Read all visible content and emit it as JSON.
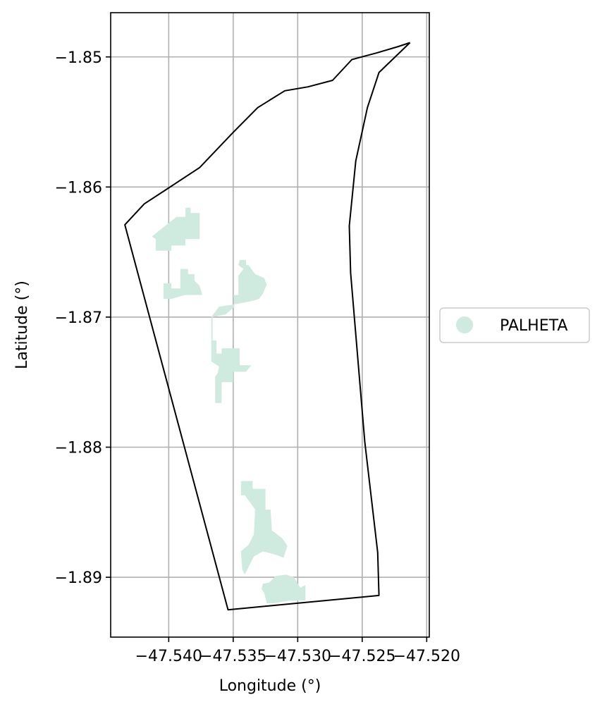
{
  "chart_data": {
    "type": "map",
    "title": "",
    "xlabel": "Longitude (°)",
    "ylabel": "Latitude (°)",
    "xlim": [
      -47.5445,
      -47.5198
    ],
    "ylim": [
      -1.8946,
      -1.8466
    ],
    "grid": true,
    "x_ticks": [
      {
        "value": -47.54,
        "label": "−47.540"
      },
      {
        "value": -47.535,
        "label": "−47.535"
      },
      {
        "value": -47.53,
        "label": "−47.530"
      },
      {
        "value": -47.525,
        "label": "−47.525"
      },
      {
        "value": -47.52,
        "label": "−47.520"
      }
    ],
    "y_ticks": [
      {
        "value": -1.85,
        "label": "−1.85"
      },
      {
        "value": -1.86,
        "label": "−1.86"
      },
      {
        "value": -1.87,
        "label": "−1.87"
      },
      {
        "value": -1.88,
        "label": "−1.88"
      },
      {
        "value": -1.89,
        "label": "−1.89"
      }
    ],
    "legend": {
      "placement": "center-right outside",
      "entries": [
        {
          "label": "PALHETA",
          "color": "#cfeadf",
          "marker": "circle"
        }
      ]
    },
    "boundary": [
      [
        -47.5213,
        -1.8489
      ],
      [
        -47.5222,
        -1.8492
      ],
      [
        -47.5239,
        -1.8497
      ],
      [
        -47.5258,
        -1.8502
      ],
      [
        -47.5273,
        -1.8518
      ],
      [
        -47.5292,
        -1.8523
      ],
      [
        -47.531,
        -1.8526
      ],
      [
        -47.5331,
        -1.8539
      ],
      [
        -47.535,
        -1.8558
      ],
      [
        -47.5376,
        -1.8585
      ],
      [
        -47.5402,
        -1.8602
      ],
      [
        -47.5419,
        -1.8613
      ],
      [
        -47.5434,
        -1.8629
      ],
      [
        -47.5354,
        -1.8925
      ],
      [
        -47.5237,
        -1.8914
      ],
      [
        -47.5238,
        -1.8881
      ],
      [
        -47.5248,
        -1.8796
      ],
      [
        -47.5259,
        -1.8666
      ],
      [
        -47.526,
        -1.863
      ],
      [
        -47.5255,
        -1.858
      ],
      [
        -47.5246,
        -1.8539
      ],
      [
        -47.5237,
        -1.8512
      ],
      [
        -47.5213,
        -1.8489
      ]
    ],
    "features": [
      {
        "name": "PALHETA",
        "color": "#cfeadf",
        "polygons": [
          [
            [
              -47.5413,
              -1.8638
            ],
            [
              -47.5394,
              -1.8623
            ],
            [
              -47.5387,
              -1.8623
            ],
            [
              -47.5387,
              -1.8616
            ],
            [
              -47.5383,
              -1.8616
            ],
            [
              -47.5383,
              -1.862
            ],
            [
              -47.5376,
              -1.862
            ],
            [
              -47.5376,
              -1.864
            ],
            [
              -47.5387,
              -1.864
            ],
            [
              -47.5387,
              -1.8645
            ],
            [
              -47.5398,
              -1.8645
            ],
            [
              -47.5398,
              -1.8649
            ],
            [
              -47.541,
              -1.8649
            ],
            [
              -47.541,
              -1.864
            ]
          ],
          [
            [
              -47.5404,
              -1.8674
            ],
            [
              -47.5398,
              -1.8674
            ],
            [
              -47.5398,
              -1.8678
            ],
            [
              -47.5391,
              -1.8678
            ],
            [
              -47.5391,
              -1.8663
            ],
            [
              -47.5385,
              -1.8663
            ],
            [
              -47.5385,
              -1.8667
            ],
            [
              -47.538,
              -1.8667
            ],
            [
              -47.538,
              -1.8672
            ],
            [
              -47.5376,
              -1.8676
            ],
            [
              -47.5374,
              -1.8683
            ],
            [
              -47.5387,
              -1.8683
            ],
            [
              -47.5398,
              -1.8686
            ],
            [
              -47.5404,
              -1.8686
            ]
          ],
          [
            [
              -47.5366,
              -1.8718
            ],
            [
              -47.5366,
              -1.87
            ],
            [
              -47.5356,
              -1.8698
            ],
            [
              -47.5349,
              -1.8692
            ],
            [
              -47.535,
              -1.8683
            ],
            [
              -47.5346,
              -1.8683
            ],
            [
              -47.5346,
              -1.8668
            ],
            [
              -47.5342,
              -1.8663
            ],
            [
              -47.5346,
              -1.866
            ],
            [
              -47.5345,
              -1.8656
            ],
            [
              -47.534,
              -1.8656
            ],
            [
              -47.534,
              -1.866
            ],
            [
              -47.5338,
              -1.866
            ],
            [
              -47.5336,
              -1.8663
            ],
            [
              -47.5333,
              -1.8667
            ],
            [
              -47.5326,
              -1.867
            ],
            [
              -47.5324,
              -1.8675
            ],
            [
              -47.5327,
              -1.8682
            ],
            [
              -47.533,
              -1.8686
            ],
            [
              -47.5337,
              -1.8688
            ],
            [
              -47.5348,
              -1.869
            ],
            [
              -47.5361,
              -1.8692
            ],
            [
              -47.5367,
              -1.87
            ],
            [
              -47.5367,
              -1.8734
            ],
            [
              -47.5361,
              -1.8738
            ],
            [
              -47.5362,
              -1.8743
            ],
            [
              -47.5364,
              -1.8746
            ],
            [
              -47.5364,
              -1.8766
            ],
            [
              -47.5359,
              -1.8766
            ],
            [
              -47.5359,
              -1.875
            ],
            [
              -47.535,
              -1.875
            ],
            [
              -47.535,
              -1.8742
            ],
            [
              -47.534,
              -1.8742
            ],
            [
              -47.5336,
              -1.8737
            ],
            [
              -47.5345,
              -1.8737
            ],
            [
              -47.5345,
              -1.8724
            ],
            [
              -47.5359,
              -1.8724
            ],
            [
              -47.5359,
              -1.8728
            ],
            [
              -47.5363,
              -1.8728
            ],
            [
              -47.5363,
              -1.8718
            ]
          ],
          [
            [
              -47.5344,
              -1.8826
            ],
            [
              -47.5335,
              -1.8826
            ],
            [
              -47.5335,
              -1.8832
            ],
            [
              -47.5325,
              -1.8832
            ],
            [
              -47.5325,
              -1.8848
            ],
            [
              -47.5321,
              -1.8848
            ],
            [
              -47.532,
              -1.8864
            ],
            [
              -47.5312,
              -1.887
            ],
            [
              -47.5308,
              -1.8876
            ],
            [
              -47.5311,
              -1.8885
            ],
            [
              -47.5316,
              -1.8883
            ],
            [
              -47.5327,
              -1.888
            ],
            [
              -47.5334,
              -1.8884
            ],
            [
              -47.5341,
              -1.8898
            ],
            [
              -47.5343,
              -1.8894
            ],
            [
              -47.5344,
              -1.888
            ],
            [
              -47.5338,
              -1.8875
            ],
            [
              -47.5334,
              -1.8867
            ],
            [
              -47.5333,
              -1.8848
            ],
            [
              -47.5341,
              -1.8837
            ],
            [
              -47.5344,
              -1.8837
            ]
          ],
          [
            [
              -47.5327,
              -1.8905
            ],
            [
              -47.5322,
              -1.8904
            ],
            [
              -47.5317,
              -1.8899
            ],
            [
              -47.5309,
              -1.8898
            ],
            [
              -47.5303,
              -1.89
            ],
            [
              -47.5298,
              -1.8908
            ],
            [
              -47.5294,
              -1.8906
            ],
            [
              -47.5294,
              -1.8918
            ],
            [
              -47.5307,
              -1.8918
            ],
            [
              -47.5318,
              -1.892
            ],
            [
              -47.5324,
              -1.892
            ],
            [
              -47.5326,
              -1.8912
            ],
            [
              -47.5328,
              -1.8909
            ]
          ]
        ]
      }
    ]
  }
}
